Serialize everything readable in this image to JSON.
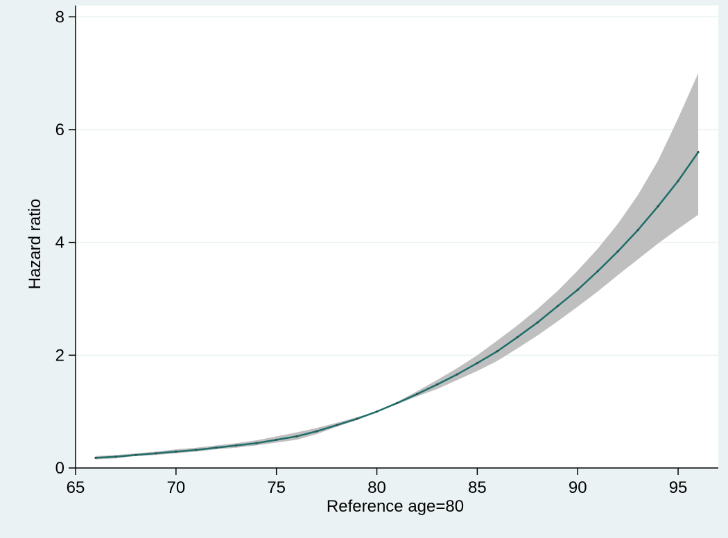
{
  "chart_data": {
    "type": "line",
    "xlabel": "Reference age=80",
    "ylabel": "Hazard ratio",
    "xlim": [
      65,
      97
    ],
    "ylim": [
      0,
      8.2
    ],
    "x_ticks": [
      65,
      70,
      75,
      80,
      85,
      90,
      95
    ],
    "y_ticks": [
      0,
      2,
      4,
      6,
      8
    ],
    "grid": "horizontal",
    "legend": "none",
    "colors": {
      "background": "#eaf2f3",
      "plot_area": "#ffffff",
      "gridline": "#eaf2f3",
      "line": "#1d6e6a",
      "band": "#bfbfbf"
    },
    "series": [
      {
        "x": [
          66,
          67,
          68,
          69,
          70,
          71,
          72,
          73,
          74,
          75,
          76,
          77,
          78,
          79,
          80,
          81,
          82,
          83,
          84,
          85,
          86,
          87,
          88,
          89,
          90,
          91,
          92,
          93,
          94,
          95,
          96
        ],
        "values": [
          0.18,
          0.2,
          0.23,
          0.26,
          0.29,
          0.32,
          0.36,
          0.4,
          0.44,
          0.5,
          0.56,
          0.65,
          0.76,
          0.87,
          1.0,
          1.15,
          1.31,
          1.48,
          1.66,
          1.86,
          2.07,
          2.32,
          2.58,
          2.87,
          3.16,
          3.49,
          3.84,
          4.22,
          4.64,
          5.09,
          5.6
        ],
        "lower": [
          0.15,
          0.17,
          0.21,
          0.23,
          0.26,
          0.29,
          0.33,
          0.36,
          0.4,
          0.45,
          0.5,
          0.6,
          0.73,
          0.85,
          1.0,
          1.13,
          1.27,
          1.4,
          1.56,
          1.72,
          1.9,
          2.12,
          2.35,
          2.6,
          2.86,
          3.13,
          3.42,
          3.7,
          3.98,
          4.24,
          4.49
        ],
        "upper": [
          0.21,
          0.23,
          0.26,
          0.29,
          0.33,
          0.36,
          0.4,
          0.44,
          0.49,
          0.56,
          0.63,
          0.71,
          0.8,
          0.9,
          1.0,
          1.17,
          1.36,
          1.56,
          1.77,
          2.0,
          2.26,
          2.53,
          2.82,
          3.14,
          3.5,
          3.89,
          4.33,
          4.84,
          5.45,
          6.2,
          7.0
        ]
      }
    ]
  }
}
